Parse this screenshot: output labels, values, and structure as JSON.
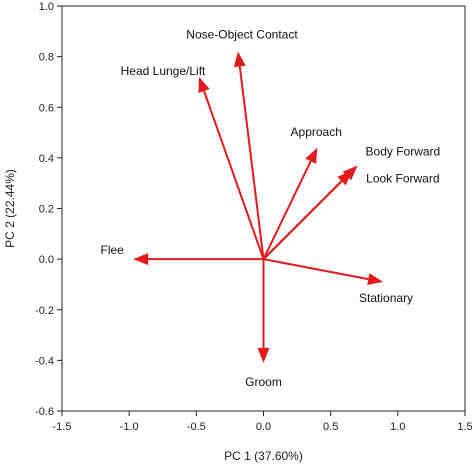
{
  "chart_data": {
    "type": "biplot",
    "xlabel": "PC 1 (37.60%)",
    "ylabel": "PC 2 (22.44%)",
    "xlim": [
      -1.5,
      1.5
    ],
    "ylim": [
      -0.6,
      1.0
    ],
    "xticks": [
      "-1.5",
      "-1.0",
      "-0.5",
      "0.0",
      "0.5",
      "1.0",
      "1.5"
    ],
    "yticks": [
      "-0.6",
      "-0.4",
      "-0.2",
      "0.0",
      "0.2",
      "0.4",
      "0.6",
      "0.8",
      "1.0"
    ],
    "grid": false,
    "arrow_color": "#e31a1c",
    "vectors": [
      {
        "label": "Nose-Object Contact",
        "x": -0.19,
        "y": 0.82
      },
      {
        "label": "Head Lunge/Lift",
        "x": -0.48,
        "y": 0.72
      },
      {
        "label": "Approach",
        "x": 0.4,
        "y": 0.44
      },
      {
        "label": "Body Forward",
        "x": 0.7,
        "y": 0.37
      },
      {
        "label": "Look Forward",
        "x": 0.66,
        "y": 0.35
      },
      {
        "label": "Flee",
        "x": -0.97,
        "y": 0.0
      },
      {
        "label": "Stationary",
        "x": 0.89,
        "y": -0.09
      },
      {
        "label": "Groom",
        "x": 0.0,
        "y": -0.41
      }
    ]
  }
}
